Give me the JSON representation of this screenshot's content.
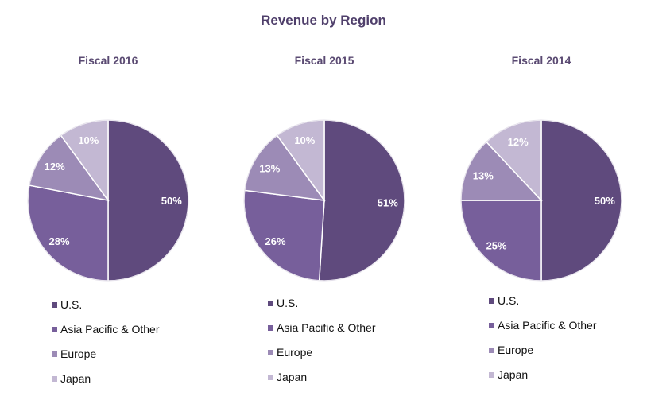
{
  "chart_data": [
    {
      "type": "pie",
      "title": "Revenue by Region",
      "subtitle": "Fiscal 2016",
      "categories": [
        "U.S.",
        "Asia Pacific & Other",
        "Europe",
        "Japan"
      ],
      "values": [
        50,
        28,
        12,
        10
      ],
      "labels": [
        "50%",
        "28%",
        "12%",
        "10%"
      ],
      "legend": "bottom"
    },
    {
      "type": "pie",
      "subtitle": "Fiscal 2015",
      "categories": [
        "U.S.",
        "Asia Pacific & Other",
        "Europe",
        "Japan"
      ],
      "values": [
        51,
        26,
        13,
        10
      ],
      "labels": [
        "51%",
        "26%",
        "13%",
        "10%"
      ],
      "legend": "bottom"
    },
    {
      "type": "pie",
      "subtitle": "Fiscal 2014",
      "categories": [
        "U.S.",
        "Asia Pacific & Other",
        "Europe",
        "Japan"
      ],
      "values": [
        50,
        25,
        13,
        12
      ],
      "labels": [
        "50%",
        "25%",
        "13%",
        "12%"
      ],
      "legend": "bottom"
    }
  ],
  "colors": [
    "#5f4a7d",
    "#775f9b",
    "#9c8bb6",
    "#c3b8d3"
  ],
  "title_color": "#4f3f6b"
}
